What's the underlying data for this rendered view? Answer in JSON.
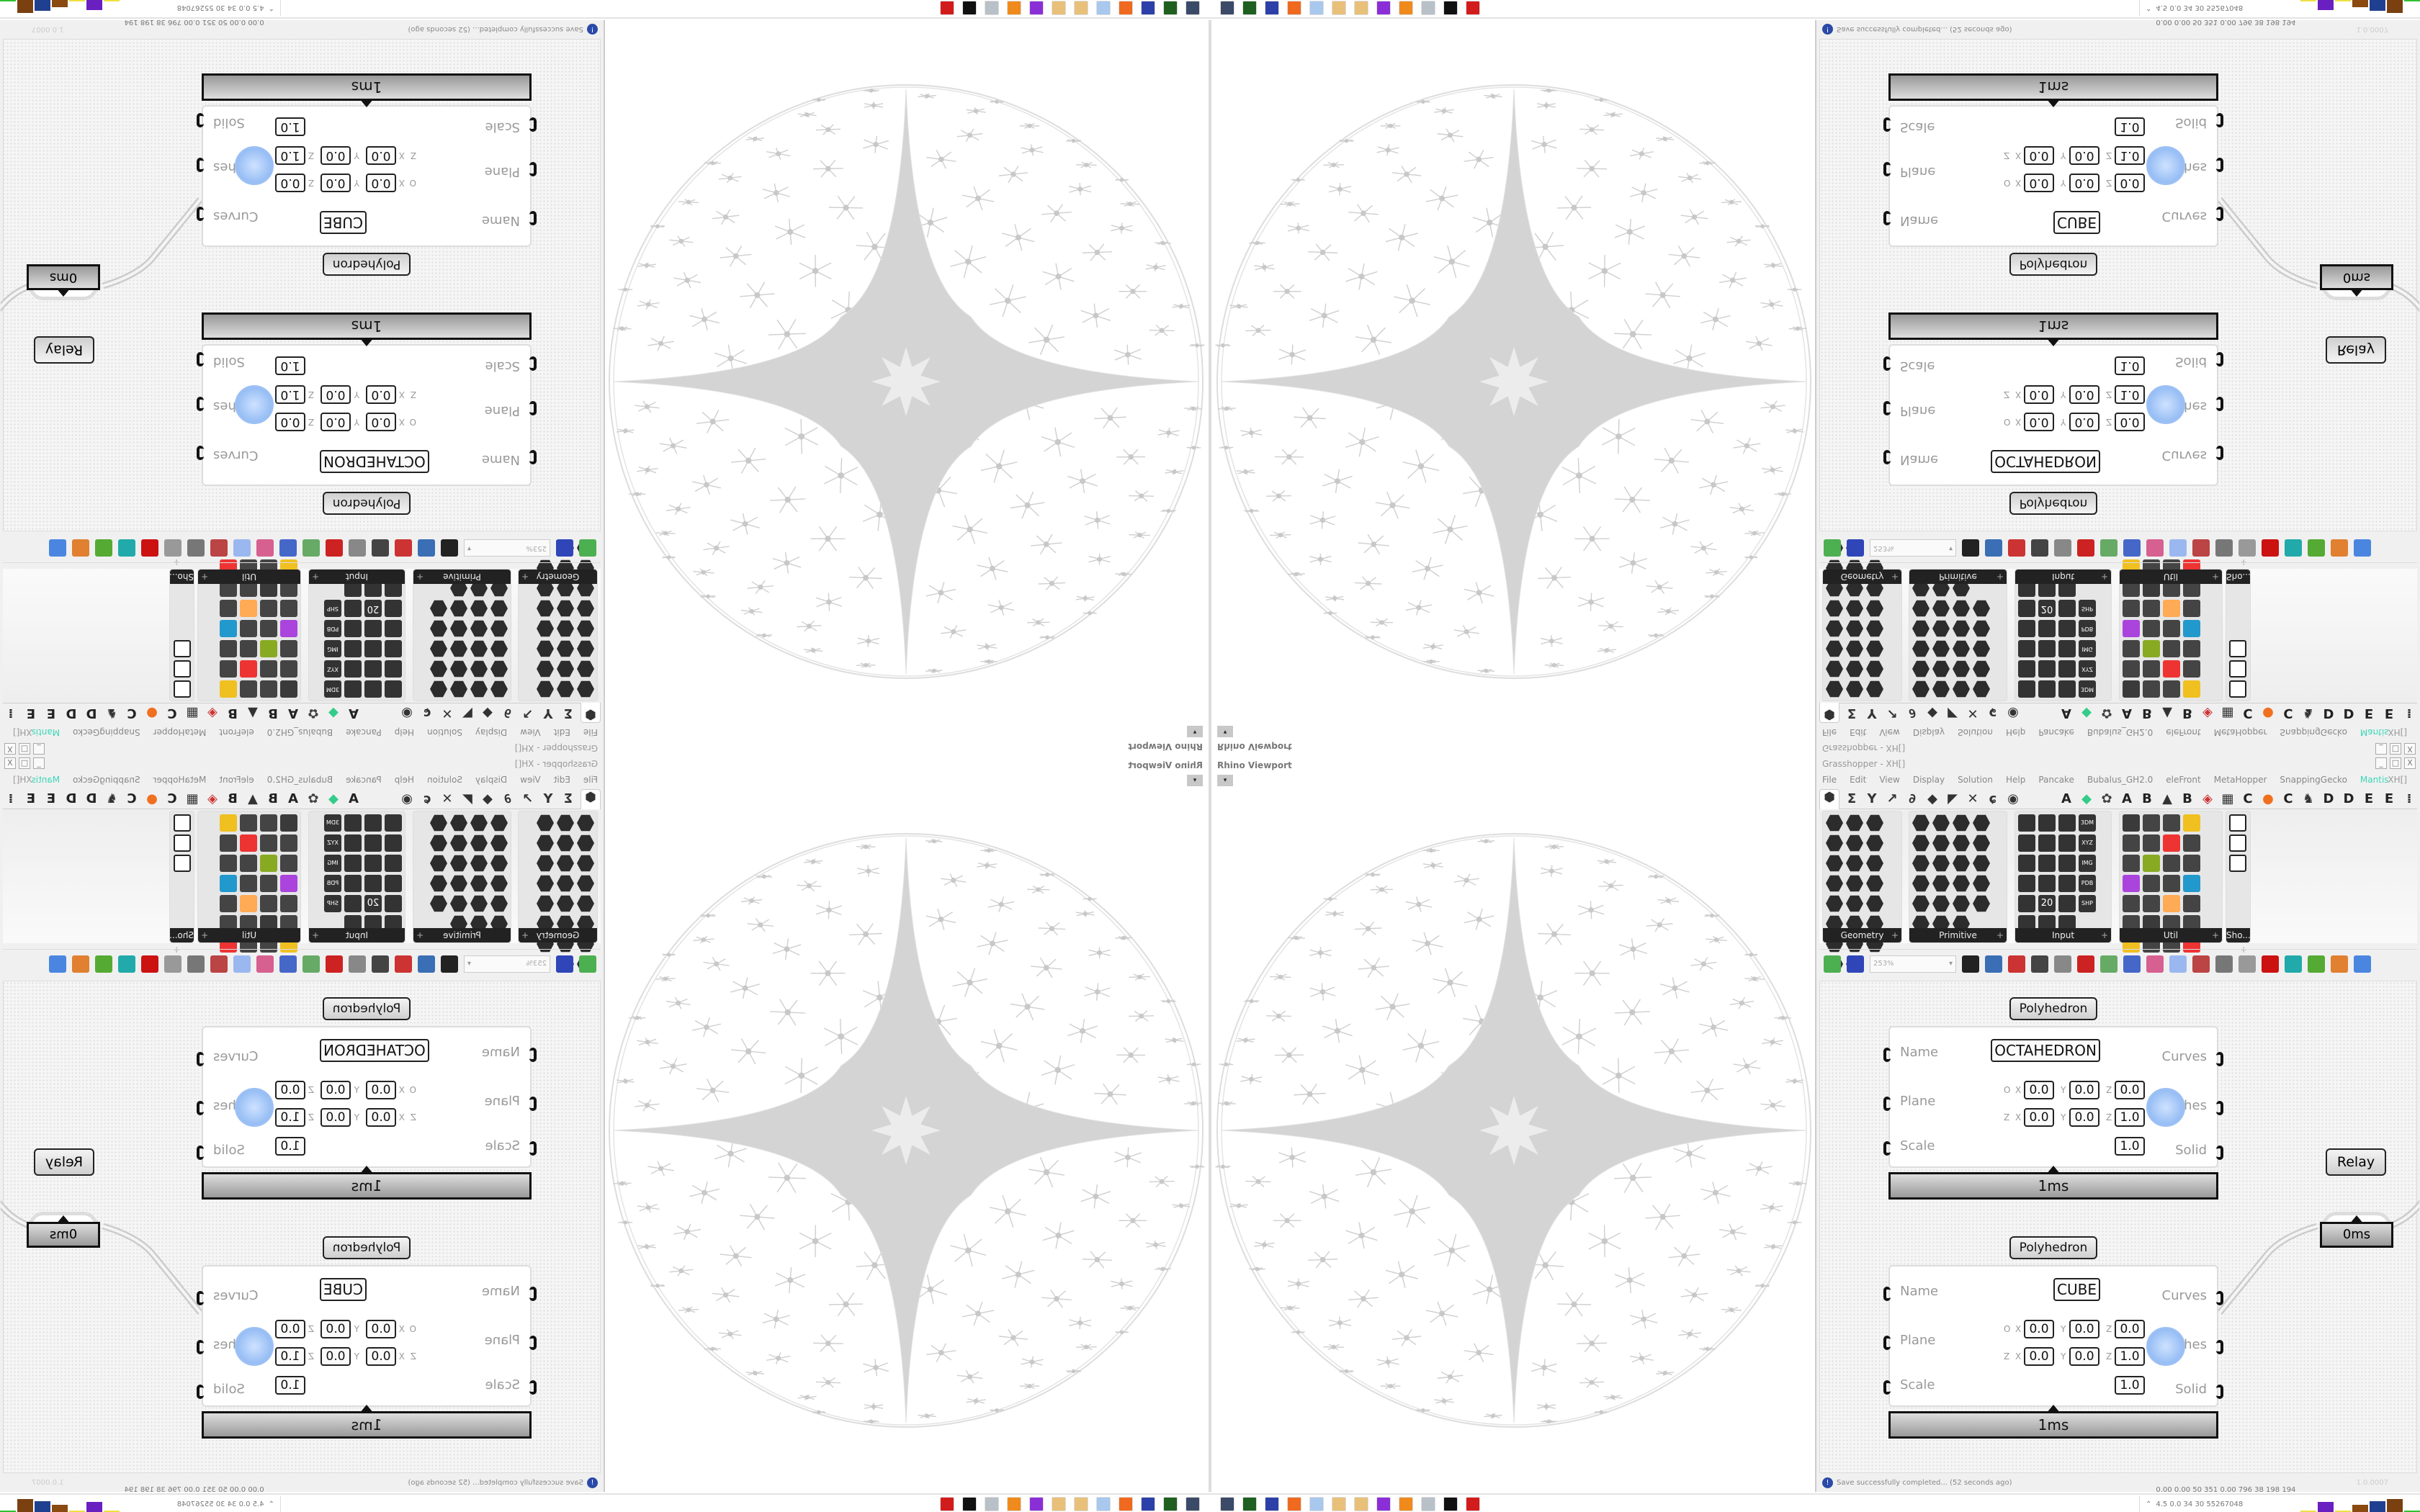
{
  "viewport": {
    "label": "Rhino Viewport",
    "dropdown": "▾"
  },
  "gh": {
    "title": "Grasshopper - XH[]",
    "window_controls": [
      "_",
      "□",
      "X"
    ],
    "menu": [
      "File",
      "Edit",
      "View",
      "Display",
      "Solution",
      "Help",
      "Pancake",
      "Bubalus_GH2.0",
      "eleFront",
      "MetaHopper",
      "SnappingGecko",
      "Mantis"
    ],
    "menu_active": "Mantis",
    "doc_name": "XH[]",
    "tab_icons": [
      {
        "name": "params-tab-icon",
        "glyph": "⬢"
      },
      {
        "name": "maths-tab-icon",
        "glyph": "Σ"
      },
      {
        "name": "sets-tab-icon",
        "glyph": "Y"
      },
      {
        "name": "vector-tab-icon",
        "glyph": "↗"
      },
      {
        "name": "curve-tab-icon",
        "glyph": "∂"
      },
      {
        "name": "surface-tab-icon",
        "glyph": "◆"
      },
      {
        "name": "mesh-tab-icon",
        "glyph": "◤"
      },
      {
        "name": "intersect-tab-icon",
        "glyph": "✕"
      },
      {
        "name": "transform-tab-icon",
        "glyph": "ɕ"
      },
      {
        "name": "display-tab-icon",
        "glyph": "◉"
      }
    ],
    "plugin_tabs": [
      {
        "name": "tab-a",
        "glyph": "A",
        "color": "#222"
      },
      {
        "name": "tab-gem",
        "glyph": "◆",
        "color": "#3c8"
      },
      {
        "name": "tab-flower",
        "glyph": "✿",
        "color": "#444"
      },
      {
        "name": "tab-a2",
        "glyph": "A",
        "color": "#222"
      },
      {
        "name": "tab-b",
        "glyph": "B",
        "color": "#222"
      },
      {
        "name": "tab-hills",
        "glyph": "▲",
        "color": "#333"
      },
      {
        "name": "tab-b2",
        "glyph": "B",
        "color": "#222"
      },
      {
        "name": "tab-shield",
        "glyph": "◈",
        "color": "#c33"
      },
      {
        "name": "tab-grid",
        "glyph": "▦",
        "color": "#333"
      },
      {
        "name": "tab-c",
        "glyph": "C",
        "color": "#222"
      },
      {
        "name": "tab-orange",
        "glyph": "●",
        "color": "#f07020"
      },
      {
        "name": "tab-c2",
        "glyph": "C",
        "color": "#222"
      },
      {
        "name": "tab-bird",
        "glyph": "♞",
        "color": "#333"
      },
      {
        "name": "tab-d",
        "glyph": "D",
        "color": "#222"
      },
      {
        "name": "tab-d2",
        "glyph": "D",
        "color": "#222"
      },
      {
        "name": "tab-e",
        "glyph": "E",
        "color": "#222"
      },
      {
        "name": "tab-e2",
        "glyph": "E",
        "color": "#222"
      },
      {
        "name": "tab-more",
        "glyph": "⁞",
        "color": "#222"
      }
    ],
    "panels": [
      {
        "label": "Geometry",
        "icons": 23,
        "style": "hex"
      },
      {
        "label": "Primitive",
        "icons": 23,
        "style": "hex"
      },
      {
        "label": "Input",
        "icons": 23,
        "style": "input",
        "chips": [
          "3DM",
          "XYZ",
          "IMG",
          "PDB",
          "SHP",
          "20"
        ]
      },
      {
        "label": "Util",
        "icons": 28,
        "style": "util"
      },
      {
        "label": "Sho...",
        "icons": 3,
        "style": "sho"
      }
    ],
    "zoom": "253%",
    "toolbar_icons": [
      {
        "name": "open-file-icon",
        "color": "#4caf50"
      },
      {
        "name": "save-file-icon",
        "color": "#2f45b8"
      },
      {
        "name": "zoom-extents-icon",
        "color": "#222"
      },
      {
        "name": "preview-eye-icon",
        "color": "#3a6fb5"
      },
      {
        "name": "sketch-icon",
        "color": "#c33"
      },
      {
        "name": "cluster-icon",
        "color": "#444"
      },
      {
        "name": "at-icon",
        "color": "#888"
      },
      {
        "name": "gha-icon",
        "color": "#c22"
      },
      {
        "name": "picture-icon",
        "color": "#6a6"
      },
      {
        "name": "search-icon",
        "color": "#4467c8"
      },
      {
        "name": "package-icon",
        "color": "#d66090"
      },
      {
        "name": "bulb-icon",
        "color": "#9ab7f0"
      },
      {
        "name": "dna-icon",
        "color": "#b44"
      },
      {
        "name": "shader-icon",
        "color": "#777"
      },
      {
        "name": "wire-icon",
        "color": "#999"
      },
      {
        "name": "red-shape-icon",
        "color": "#c11"
      },
      {
        "name": "teal-shape-icon",
        "color": "#2aa"
      },
      {
        "name": "green-shape-icon",
        "color": "#5a3"
      },
      {
        "name": "orange-sphere-icon",
        "color": "#e08030"
      },
      {
        "name": "blue-sphere-icon",
        "color": "#4a86e0"
      }
    ],
    "components": [
      {
        "label": "Polyhedron",
        "name_value": "OCTAHEDRON",
        "inputs": [
          "Name",
          "Plane",
          "Scale"
        ],
        "outputs": [
          "Curves",
          "Meshes",
          "Solid"
        ],
        "origin": [
          "0.0",
          "0.0",
          "0.0"
        ],
        "zaxis": [
          "0.0",
          "0.0",
          "1.0"
        ],
        "scale": "1.0",
        "time": "1ms"
      },
      {
        "label": "Polyhedron",
        "name_value": "CUBE",
        "inputs": [
          "Name",
          "Plane",
          "Scale"
        ],
        "outputs": [
          "Curves",
          "Meshes",
          "Solid"
        ],
        "origin": [
          "0.0",
          "0.0",
          "0.0"
        ],
        "zaxis": [
          "0.0",
          "0.0",
          "1.0"
        ],
        "scale": "1.0",
        "time": "1ms"
      }
    ],
    "axis_labels": {
      "o": "O",
      "z": "Z",
      "x": "X",
      "y": "Y",
      "zz": "Z"
    },
    "relay": {
      "label": "Relay",
      "time": "0ms"
    },
    "status": "Save successfully completed... (52 seconds ago)",
    "version": "1.0.0007"
  },
  "taskbar": {
    "icons": [
      {
        "name": "remote-desktop-icon",
        "color": "#3b4a66"
      },
      {
        "name": "terminal-green-icon",
        "color": "#1f5f1f"
      },
      {
        "name": "floppy-64-icon",
        "color": "#2d3fa8"
      },
      {
        "name": "firefox-icon",
        "color": "#ef6a1f"
      },
      {
        "name": "calculator-icon",
        "color": "#a8c8ee"
      },
      {
        "name": "palette-icon",
        "color": "#e8c07a"
      },
      {
        "name": "palette-2-icon",
        "color": "#e8c07a"
      },
      {
        "name": "purple-app-icon",
        "color": "#8a2fd8"
      },
      {
        "name": "blender-icon",
        "color": "#f08a1c"
      },
      {
        "name": "notepad-icon",
        "color": "#b8c0c8"
      },
      {
        "name": "inkscape-icon",
        "color": "#111"
      },
      {
        "name": "red-app-icon",
        "color": "#d21c1c"
      }
    ],
    "perf": "0.00 0.00 50 351 0.00 796 38 198 194 4.5 0.0 34 30 55267048",
    "perf_bars": [
      {
        "color": "#f0e040",
        "level": 0.1
      },
      {
        "color": "#6a1fc0",
        "level": 0.8
      },
      {
        "color": "#f0e040",
        "level": 0.1
      },
      {
        "color": "#8a4a10",
        "level": 0.55
      },
      {
        "color": "#1f3f90",
        "level": 0.85
      },
      {
        "color": "#7a4010",
        "level": 1.0
      },
      {
        "color": "#30c030",
        "level": 0.1
      }
    ]
  }
}
